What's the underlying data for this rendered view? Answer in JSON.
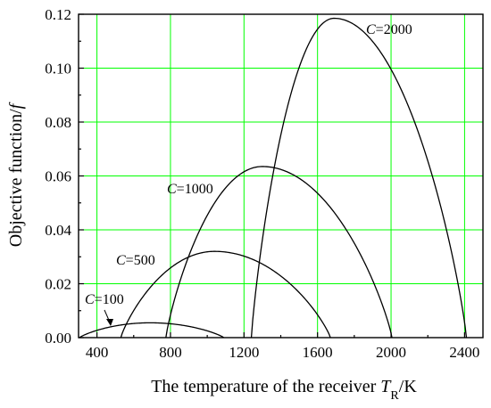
{
  "chart_data": {
    "type": "line",
    "xlabel_main": "The temperature of the receiver ",
    "xlabel_var": "T",
    "xlabel_sub": "R",
    "xlabel_unit": "/K",
    "ylabel_main": "Objective function/",
    "ylabel_var": "f",
    "xlim": [
      300,
      2500
    ],
    "ylim": [
      0,
      0.12
    ],
    "xticks": [
      "400",
      "800",
      "1200",
      "1600",
      "2000",
      "2400"
    ],
    "yticks": [
      "0.00",
      "0.02",
      "0.04",
      "0.06",
      "0.08",
      "0.10",
      "0.12"
    ],
    "grid": true,
    "series": [
      {
        "name": "C=100",
        "label_var": "C",
        "label_val": "=100",
        "x0": 305,
        "x1": 1090,
        "xpeak": 690,
        "peak": 0.0055
      },
      {
        "name": "C=500",
        "label_var": "C",
        "label_val": "=500",
        "x0": 530,
        "x1": 1670,
        "xpeak": 1040,
        "peak": 0.032
      },
      {
        "name": "C=1000",
        "label_var": "C",
        "label_val": "=1000",
        "x0": 775,
        "x1": 2005,
        "xpeak": 1300,
        "peak": 0.0635
      },
      {
        "name": "C=2000",
        "label_var": "C",
        "label_val": "=2000",
        "x0": 1240,
        "x1": 2410,
        "xpeak": 1690,
        "peak": 0.1185
      }
    ]
  }
}
